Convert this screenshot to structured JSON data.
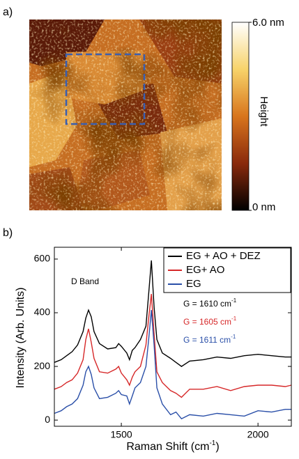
{
  "panel_a": {
    "label": "a)",
    "colorbar": {
      "max_label": "6.0 nm",
      "min_label": "0 nm",
      "title": "Height"
    }
  },
  "panel_b_label": "b)",
  "chart_data": {
    "type": "line",
    "xlabel": {
      "text": "Raman Shift (cm",
      "sup": "-1",
      "tail": ")"
    },
    "ylabel": "Intensity (Arb. Units)",
    "x": [
      1255,
      1280,
      1300,
      1320,
      1340,
      1360,
      1370,
      1380,
      1390,
      1400,
      1420,
      1450,
      1480,
      1490,
      1500,
      1520,
      1530,
      1540,
      1550,
      1570,
      1590,
      1600,
      1610,
      1620,
      1630,
      1650,
      1680,
      1700,
      1720,
      1750,
      1800,
      1850,
      1900,
      1950,
      2000,
      2050,
      2100,
      2122
    ],
    "series": [
      {
        "name": "EG + AO + DEZ",
        "color": "#000000",
        "values": [
          215,
          225,
          240,
          255,
          280,
          330,
          380,
          410,
          385,
          330,
          285,
          265,
          270,
          285,
          275,
          250,
          225,
          260,
          270,
          300,
          350,
          470,
          595,
          420,
          300,
          250,
          230,
          215,
          200,
          220,
          225,
          235,
          230,
          240,
          245,
          240,
          235,
          235
        ]
      },
      {
        "name": "EG+ AO",
        "color": "#d62728",
        "values": [
          115,
          125,
          140,
          150,
          175,
          225,
          300,
          340,
          290,
          230,
          180,
          175,
          190,
          200,
          175,
          150,
          130,
          160,
          180,
          200,
          280,
          380,
          470,
          320,
          180,
          140,
          110,
          100,
          85,
          115,
          115,
          125,
          110,
          125,
          130,
          130,
          125,
          130
        ]
      },
      {
        "name": "EG",
        "color": "#2a4fa8",
        "values": [
          25,
          35,
          50,
          60,
          80,
          130,
          180,
          200,
          170,
          120,
          80,
          85,
          100,
          110,
          95,
          90,
          60,
          90,
          120,
          140,
          200,
          300,
          410,
          280,
          120,
          60,
          20,
          30,
          5,
          20,
          15,
          25,
          20,
          15,
          35,
          30,
          40,
          40
        ]
      }
    ],
    "annotations": [
      {
        "text": "D Band",
        "color": "#000000"
      },
      {
        "text": "G = 1610 cm",
        "sup": "-1",
        "color": "#000000"
      },
      {
        "text": "G = 1605 cm",
        "sup": "-1",
        "color": "#d62728"
      },
      {
        "text": "G = 1611 cm",
        "sup": "-1",
        "color": "#2a4fa8"
      }
    ],
    "xlim": [
      1255,
      2122
    ],
    "ylim": [
      -23,
      644
    ],
    "xticks": [
      1500,
      2000
    ],
    "yticks": [
      0,
      200,
      400,
      600
    ],
    "legend": "upper right"
  }
}
